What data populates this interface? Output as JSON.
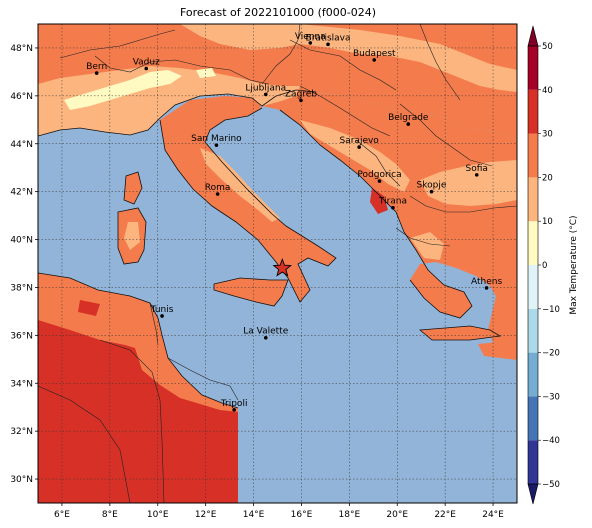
{
  "title": "Forecast of 2022101000 (f000-024)",
  "map": {
    "lon_range": [
      5.0,
      25.0
    ],
    "lat_range": [
      29.0,
      49.0
    ],
    "lon_ticks": [
      {
        "value": 6,
        "label": "6°E"
      },
      {
        "value": 8,
        "label": "8°E"
      },
      {
        "value": 10,
        "label": "10°E"
      },
      {
        "value": 12,
        "label": "12°E"
      },
      {
        "value": 14,
        "label": "14°E"
      },
      {
        "value": 16,
        "label": "16°E"
      },
      {
        "value": 18,
        "label": "18°E"
      },
      {
        "value": 20,
        "label": "20°E"
      },
      {
        "value": 22,
        "label": "22°E"
      },
      {
        "value": 24,
        "label": "24°E"
      }
    ],
    "lat_ticks": [
      {
        "value": 30,
        "label": "30°N"
      },
      {
        "value": 32,
        "label": "32°N"
      },
      {
        "value": 34,
        "label": "34°N"
      },
      {
        "value": 36,
        "label": "36°N"
      },
      {
        "value": 38,
        "label": "38°N"
      },
      {
        "value": 40,
        "label": "40°N"
      },
      {
        "value": 42,
        "label": "42°N"
      },
      {
        "value": 44,
        "label": "44°N"
      },
      {
        "value": 46,
        "label": "46°N"
      },
      {
        "value": 48,
        "label": "48°N"
      }
    ],
    "grid": true,
    "sea_color": "#92b4d8",
    "colors": {
      "c10_20": "#fdb57f",
      "c20_30": "#f47c4c",
      "c30_40": "#d73127",
      "c0_10": "#fefac2"
    }
  },
  "cities": [
    {
      "name": "Bern",
      "lon": 7.45,
      "lat": 46.95
    },
    {
      "name": "Vaduz",
      "lon": 9.52,
      "lat": 47.14
    },
    {
      "name": "Vienna",
      "lon": 16.37,
      "lat": 48.21
    },
    {
      "name": "Bratislava",
      "lon": 17.11,
      "lat": 48.15
    },
    {
      "name": "Budapest",
      "lon": 19.04,
      "lat": 47.5
    },
    {
      "name": "Ljubljana",
      "lon": 14.51,
      "lat": 46.06
    },
    {
      "name": "Zagreb",
      "lon": 15.98,
      "lat": 45.81
    },
    {
      "name": "Belgrade",
      "lon": 20.46,
      "lat": 44.82
    },
    {
      "name": "San Marino",
      "lon": 12.45,
      "lat": 43.94
    },
    {
      "name": "Sarajevo",
      "lon": 18.41,
      "lat": 43.86
    },
    {
      "name": "Sofia",
      "lon": 23.32,
      "lat": 42.7
    },
    {
      "name": "Podgorica",
      "lon": 19.26,
      "lat": 42.44
    },
    {
      "name": "Skopje",
      "lon": 21.43,
      "lat": 42.0
    },
    {
      "name": "Roma",
      "lon": 12.5,
      "lat": 41.9
    },
    {
      "name": "Tirana",
      "lon": 19.82,
      "lat": 41.33
    },
    {
      "name": "Athens",
      "lon": 23.73,
      "lat": 37.98
    },
    {
      "name": "Tunis",
      "lon": 10.18,
      "lat": 36.81
    },
    {
      "name": "La Valette",
      "lon": 14.51,
      "lat": 35.9
    },
    {
      "name": "Tripoli",
      "lon": 13.19,
      "lat": 32.89
    }
  ],
  "marker": {
    "lon": 15.2,
    "lat": 38.8,
    "color": "#d73127"
  },
  "colorbar": {
    "label": "Max Temperature (°C)",
    "ticks": [
      -50,
      -40,
      -30,
      -20,
      -10,
      0,
      10,
      20,
      30,
      40,
      50
    ],
    "levels": [
      {
        "from": -50,
        "to": -40,
        "color": "#313695"
      },
      {
        "from": -40,
        "to": -30,
        "color": "#4575b4"
      },
      {
        "from": -30,
        "to": -20,
        "color": "#74add1"
      },
      {
        "from": -20,
        "to": -10,
        "color": "#abd9e9"
      },
      {
        "from": -10,
        "to": 0,
        "color": "#e0f3f8"
      },
      {
        "from": 0,
        "to": 10,
        "color": "#fefac2"
      },
      {
        "from": 10,
        "to": 20,
        "color": "#fdb57f"
      },
      {
        "from": 20,
        "to": 30,
        "color": "#f47c4c"
      },
      {
        "from": 30,
        "to": 40,
        "color": "#d73127"
      },
      {
        "from": 40,
        "to": 50,
        "color": "#a50026"
      }
    ],
    "under_color": "#1a1a66",
    "over_color": "#800026"
  }
}
